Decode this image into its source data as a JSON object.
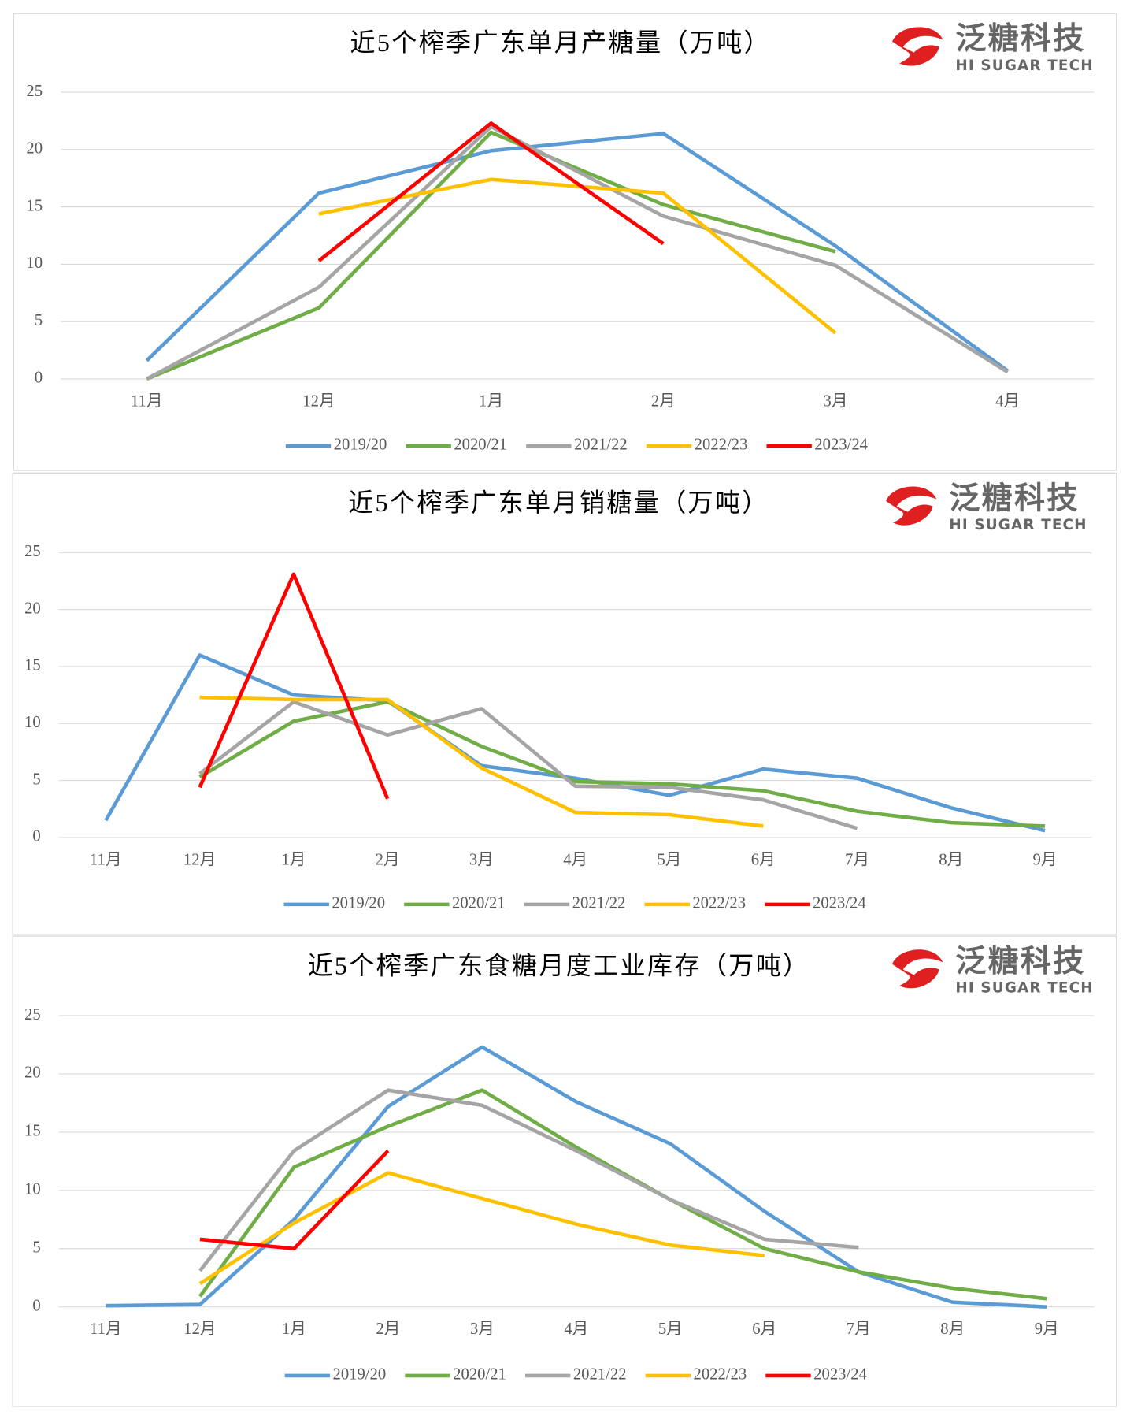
{
  "logo": {
    "name": "泛糖科技",
    "tagline": "HI SUGAR TECH"
  },
  "chart_data": [
    {
      "type": "line",
      "title": "近5个榨季广东单月产糖量（万吨）",
      "categories": [
        "11月",
        "12月",
        "1月",
        "2月",
        "3月",
        "4月"
      ],
      "ylim": [
        0,
        25
      ],
      "yticks": [
        0,
        5,
        10,
        15,
        20,
        25
      ],
      "grid": true,
      "legend": "bottom",
      "series": [
        {
          "name": "2019/20",
          "color": "#5b9bd5",
          "values": [
            1.6,
            16.2,
            19.9,
            21.4,
            11.6,
            0.7
          ]
        },
        {
          "name": "2020/21",
          "color": "#70ad47",
          "values": [
            0,
            6.2,
            21.5,
            15.2,
            11.1,
            null
          ]
        },
        {
          "name": "2021/22",
          "color": "#a5a5a5",
          "values": [
            0,
            8.0,
            22.0,
            14.2,
            9.9,
            0.6
          ]
        },
        {
          "name": "2022/23",
          "color": "#ffc000",
          "values": [
            null,
            14.4,
            17.4,
            16.2,
            4.0,
            null
          ]
        },
        {
          "name": "2023/24",
          "color": "#ff0000",
          "values": [
            null,
            10.3,
            22.3,
            11.8,
            null,
            null
          ]
        }
      ]
    },
    {
      "type": "line",
      "title": "近5个榨季广东单月销糖量（万吨）",
      "categories": [
        "11月",
        "12月",
        "1月",
        "2月",
        "3月",
        "4月",
        "5月",
        "6月",
        "7月",
        "8月",
        "9月"
      ],
      "ylim": [
        0,
        25
      ],
      "yticks": [
        0,
        5,
        10,
        15,
        20,
        25
      ],
      "grid": true,
      "legend": "bottom",
      "series": [
        {
          "name": "2019/20",
          "color": "#5b9bd5",
          "values": [
            1.5,
            16.0,
            12.5,
            12.0,
            6.3,
            5.2,
            3.7,
            6.0,
            5.2,
            2.6,
            0.6
          ]
        },
        {
          "name": "2020/21",
          "color": "#70ad47",
          "values": [
            null,
            5.3,
            10.2,
            11.9,
            8.0,
            4.9,
            4.7,
            4.1,
            2.3,
            1.3,
            1.0
          ]
        },
        {
          "name": "2021/22",
          "color": "#a5a5a5",
          "values": [
            null,
            5.6,
            11.9,
            9.0,
            11.3,
            4.5,
            4.4,
            3.3,
            0.8,
            null,
            null
          ]
        },
        {
          "name": "2022/23",
          "color": "#ffc000",
          "values": [
            null,
            12.3,
            12.1,
            12.1,
            6.1,
            2.2,
            2.0,
            1.0,
            null,
            null,
            null
          ]
        },
        {
          "name": "2023/24",
          "color": "#ff0000",
          "values": [
            null,
            4.4,
            23.1,
            3.4,
            null,
            null,
            null,
            null,
            null,
            null,
            null
          ]
        }
      ]
    },
    {
      "type": "line",
      "title": "近5个榨季广东食糖月度工业库存（万吨）",
      "categories": [
        "11月",
        "12月",
        "1月",
        "2月",
        "3月",
        "4月",
        "5月",
        "6月",
        "7月",
        "8月",
        "9月"
      ],
      "ylim": [
        0,
        25
      ],
      "yticks": [
        0,
        5,
        10,
        15,
        20,
        25
      ],
      "grid": true,
      "legend": "bottom",
      "series": [
        {
          "name": "2019/20",
          "color": "#5b9bd5",
          "values": [
            0.1,
            0.2,
            7.5,
            17.2,
            22.3,
            17.6,
            14.0,
            8.2,
            3.0,
            0.4,
            0
          ]
        },
        {
          "name": "2020/21",
          "color": "#70ad47",
          "values": [
            null,
            0.9,
            12.0,
            15.5,
            18.6,
            13.7,
            9.2,
            5.0,
            3.0,
            1.6,
            0.7
          ]
        },
        {
          "name": "2021/22",
          "color": "#a5a5a5",
          "values": [
            null,
            3.1,
            13.4,
            18.6,
            17.3,
            13.4,
            9.2,
            5.8,
            5.1,
            null,
            null
          ]
        },
        {
          "name": "2022/23",
          "color": "#ffc000",
          "values": [
            null,
            2.0,
            7.2,
            11.5,
            9.3,
            7.1,
            5.3,
            4.4,
            null,
            null,
            null
          ]
        },
        {
          "name": "2023/24",
          "color": "#ff0000",
          "values": [
            null,
            5.8,
            5.0,
            13.4,
            null,
            null,
            null,
            null,
            null,
            null,
            null
          ]
        }
      ]
    }
  ]
}
